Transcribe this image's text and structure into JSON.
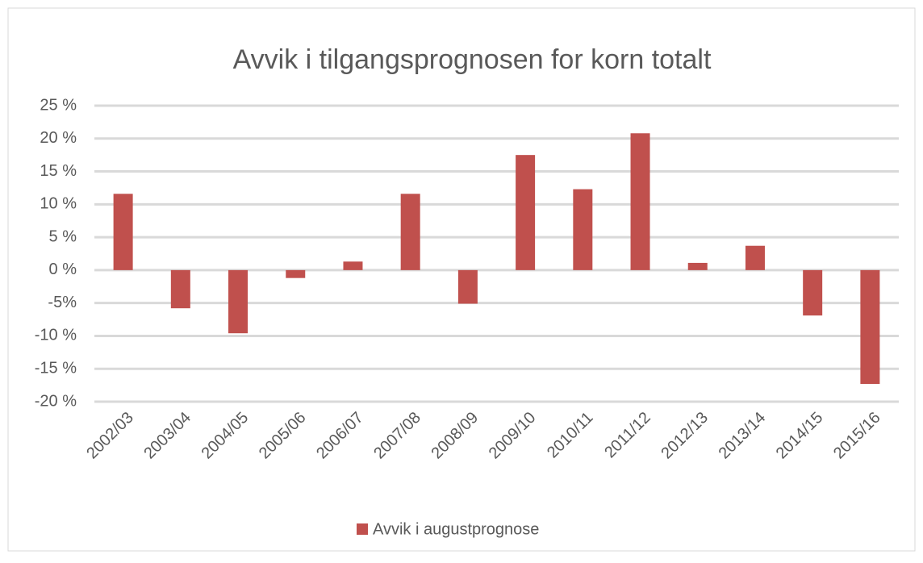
{
  "chart_data": {
    "type": "bar",
    "title": "Avvik i tilgangsprognosen for korn totalt",
    "categories": [
      "2002/03",
      "2003/04",
      "2004/05",
      "2005/06",
      "2006/07",
      "2007/08",
      "2008/09",
      "2009/10",
      "2010/11",
      "2011/12",
      "2012/13",
      "2013/14",
      "2014/15",
      "2015/16"
    ],
    "series": [
      {
        "name": "Avvik i augustprognose",
        "color": "#c0504d",
        "values": [
          11.6,
          -5.8,
          -9.6,
          -1.2,
          1.3,
          11.6,
          -5.1,
          17.5,
          12.3,
          20.8,
          1.1,
          3.7,
          -6.9,
          -17.3
        ]
      }
    ],
    "ylim": [
      -20,
      25
    ],
    "yticks": [
      {
        "value": -20,
        "label": "-20 %"
      },
      {
        "value": -15,
        "label": "-15 %"
      },
      {
        "value": -10,
        "label": "-10 %"
      },
      {
        "value": -5,
        "label": "-5%"
      },
      {
        "value": 0,
        "label": "0 %"
      },
      {
        "value": 5,
        "label": "5 %"
      },
      {
        "value": 10,
        "label": "10 %"
      },
      {
        "value": 15,
        "label": "15 %"
      },
      {
        "value": 20,
        "label": "20 %"
      },
      {
        "value": 25,
        "label": "25 %"
      }
    ],
    "grid": true,
    "legend": "bottom"
  }
}
